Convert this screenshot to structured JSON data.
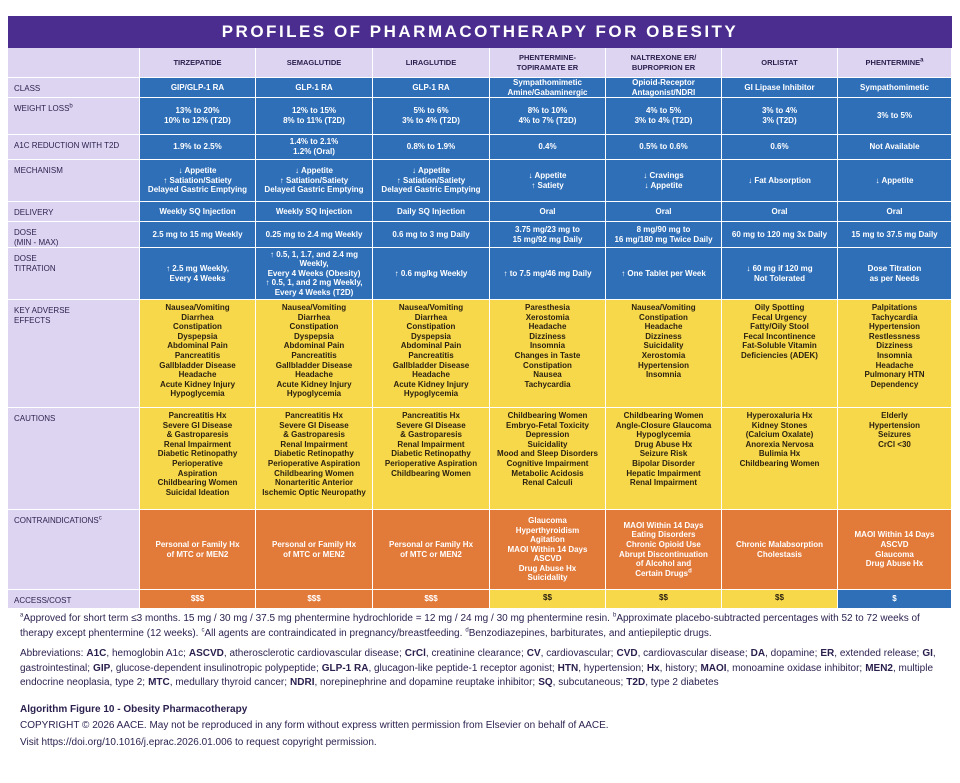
{
  "title": "PROFILES OF PHARMACOTHERAPY FOR OBESITY",
  "table": {
    "columns": [
      {
        "name": [
          "TIRZEPATIDE"
        ]
      },
      {
        "name": [
          "SEMAGLUTIDE"
        ]
      },
      {
        "name": [
          "LIRAGLUTIDE"
        ]
      },
      {
        "name": [
          "PHENTERMINE-",
          "TOPIRAMATE ER"
        ]
      },
      {
        "name": [
          "NALTREXONE ER/",
          "BUPROPRION ER"
        ]
      },
      {
        "name": [
          "ORLISTAT"
        ]
      },
      {
        "name": [
          "PHENTERMINE"
        ],
        "sup": "a"
      }
    ],
    "rows": [
      {
        "label": [
          "CLASS"
        ],
        "cells": [
          [
            "GIP/GLP-1 RA"
          ],
          [
            "GLP-1 RA"
          ],
          [
            "GLP-1 RA"
          ],
          [
            "Sympathomimetic",
            "Amine/Gabaminergic"
          ],
          [
            "Opioid-Receptor",
            "Antagonist/NDRI"
          ],
          [
            "GI Lipase Inhibitor"
          ],
          [
            "Sympathomimetic"
          ]
        ]
      },
      {
        "label": [
          "WEIGHT LOSS"
        ],
        "sup": "b",
        "cells": [
          [
            "13% to 20%",
            "10% to 12% (T2D)"
          ],
          [
            "12% to 15%",
            "8% to 11% (T2D)"
          ],
          [
            "5% to 6%",
            "3% to 4% (T2D)"
          ],
          [
            "8% to 10%",
            "4% to 7% (T2D)"
          ],
          [
            "4% to 5%",
            "3% to 4% (T2D)"
          ],
          [
            "3% to 4%",
            "3% (T2D)"
          ],
          [
            "3% to 5%"
          ]
        ]
      },
      {
        "label": [
          "A1C REDUCTION WITH T2D"
        ],
        "cells": [
          [
            "1.9% to 2.5%"
          ],
          [
            "1.4% to 2.1%",
            "1.2% (Oral)"
          ],
          [
            "0.8% to 1.9%"
          ],
          [
            "0.4%"
          ],
          [
            "0.5% to 0.6%"
          ],
          [
            "0.6%"
          ],
          [
            "Not Available"
          ]
        ]
      },
      {
        "label": [
          "MECHANISM"
        ],
        "cells": [
          [
            "↓ Appetite",
            "↑ Satiation/Satiety",
            "Delayed Gastric Emptying"
          ],
          [
            "↓ Appetite",
            "↑ Satiation/Satiety",
            "Delayed Gastric Emptying"
          ],
          [
            "↓ Appetite",
            "↑ Satiation/Satiety",
            "Delayed Gastric Emptying"
          ],
          [
            "↓ Appetite",
            "↑ Satiety"
          ],
          [
            "↓ Cravings",
            "↓ Appetite"
          ],
          [
            "↓ Fat Absorption"
          ],
          [
            "↓ Appetite"
          ]
        ]
      },
      {
        "label": [
          "DELIVERY"
        ],
        "cells": [
          [
            "Weekly SQ Injection"
          ],
          [
            "Weekly SQ Injection"
          ],
          [
            "Daily SQ Injection"
          ],
          [
            "Oral"
          ],
          [
            "Oral"
          ],
          [
            "Oral"
          ],
          [
            "Oral"
          ]
        ]
      },
      {
        "label": [
          "DOSE",
          "(MIN - MAX)"
        ],
        "cells": [
          [
            "2.5 mg to 15 mg Weekly"
          ],
          [
            "0.25 mg to 2.4 mg Weekly"
          ],
          [
            "0.6 mg to 3 mg Daily"
          ],
          [
            "3.75 mg/23 mg to",
            "15 mg/92 mg Daily"
          ],
          [
            "8 mg/90 mg to",
            "16 mg/180 mg Twice Daily"
          ],
          [
            "60 mg to 120 mg 3x Daily"
          ],
          [
            "15 mg to 37.5 mg Daily"
          ]
        ]
      },
      {
        "label": [
          "DOSE",
          "TITRATION"
        ],
        "cells": [
          [
            "↑ 2.5 mg Weekly,",
            "Every 4 Weeks"
          ],
          [
            "↑ 0.5, 1, 1.7, and 2.4 mg Weekly,",
            "Every 4 Weeks (Obesity)",
            "↑ 0.5, 1, and 2 mg Weekly,",
            "Every 4 Weeks (T2D)"
          ],
          [
            "↑ 0.6 mg/kg Weekly"
          ],
          [
            "↑ to 7.5 mg/46 mg Daily"
          ],
          [
            "↑ One Tablet per Week"
          ],
          [
            "↓ 60 mg if 120 mg",
            "Not Tolerated"
          ],
          [
            "Dose Titration",
            "as per Needs"
          ]
        ]
      },
      {
        "label": [
          "KEY ADVERSE",
          "EFFECTS"
        ],
        "cells": [
          [
            "Nausea/Vomiting",
            "Diarrhea",
            "Constipation",
            "Dyspepsia",
            "Abdominal Pain",
            "Pancreatitis",
            "Gallbladder Disease",
            "Headache",
            "Acute Kidney Injury",
            "Hypoglycemia"
          ],
          [
            "Nausea/Vomiting",
            "Diarrhea",
            "Constipation",
            "Dyspepsia",
            "Abdominal Pain",
            "Pancreatitis",
            "Gallbladder Disease",
            "Headache",
            "Acute Kidney Injury",
            "Hypoglycemia"
          ],
          [
            "Nausea/Vomiting",
            "Diarrhea",
            "Constipation",
            "Dyspepsia",
            "Abdominal Pain",
            "Pancreatitis",
            "Gallbladder Disease",
            "Headache",
            "Acute Kidney Injury",
            "Hypoglycemia"
          ],
          [
            "Paresthesia",
            "Xerostomia",
            "Headache",
            "Dizziness",
            "Insomnia",
            "Changes in Taste",
            "Constipation",
            "Nausea",
            "Tachycardia"
          ],
          [
            "Nausea/Vomiting",
            "Constipation",
            "Headache",
            "Dizziness",
            "Suicidality",
            "Xerostomia",
            "Hypertension",
            "Insomnia"
          ],
          [
            "Oily Spotting",
            "Fecal Urgency",
            "Fatty/Oily Stool",
            "Fecal Incontinence",
            "Fat-Soluble Vitamin",
            "Deficiencies (ADEK)"
          ],
          [
            "Palpitations",
            "Tachycardia",
            "Hypertension",
            "Restlessness",
            "Dizziness",
            "Insomnia",
            "Headache",
            "Pulmonary HTN",
            "Dependency"
          ]
        ]
      },
      {
        "label": [
          "CAUTIONS"
        ],
        "cells": [
          [
            "Pancreatitis Hx",
            "Severe GI Disease",
            "& Gastroparesis",
            "Renal Impairment",
            "Diabetic Retinopathy",
            "Perioperative",
            "Aspiration",
            "Childbearing Women",
            "Suicidal Ideation"
          ],
          [
            "Pancreatitis Hx",
            "Severe GI Disease",
            "& Gastroparesis",
            "Renal Impairment",
            "Diabetic Retinopathy",
            "Perioperative Aspiration",
            "Childbearing Women",
            "Nonarteritic Anterior",
            "Ischemic Optic Neuropathy"
          ],
          [
            "Pancreatitis Hx",
            "Severe GI Disease",
            "& Gastroparesis",
            "Renal Impairment",
            "Diabetic Retinopathy",
            "Perioperative Aspiration",
            "Childbearing Women"
          ],
          [
            "Childbearing Women",
            "Embryo-Fetal Toxicity",
            "Depression",
            "Suicidality",
            "Mood and Sleep Disorders",
            "Cognitive Impairment",
            "Metabolic Acidosis",
            "Renal Calculi"
          ],
          [
            "Childbearing Women",
            "Angle-Closure Glaucoma",
            "Hypoglycemia",
            "Drug Abuse Hx",
            "Seizure Risk",
            "Bipolar Disorder",
            "Hepatic Impairment",
            "Renal Impairment"
          ],
          [
            "Hyperoxaluria Hx",
            "Kidney Stones",
            "(Calcium Oxalate)",
            "Anorexia Nervosa",
            "Bulimia Hx",
            "Childbearing Women"
          ],
          [
            "Elderly",
            "Hypertension",
            "Seizures",
            "CrCl <30"
          ]
        ]
      },
      {
        "label": [
          "CONTRAINDICATIONS"
        ],
        "sup": "c",
        "cells": [
          [
            "Personal or Family Hx",
            "of MTC or MEN2"
          ],
          [
            "Personal or Family Hx",
            "of MTC or MEN2"
          ],
          [
            "Personal or Family Hx",
            "of MTC or MEN2"
          ],
          [
            "Glaucoma",
            "Hyperthyroidism",
            "Agitation",
            "MAOI Within 14 Days",
            "ASCVD",
            "Drug Abuse Hx",
            "Suicidality"
          ],
          [
            "MAOI Within 14 Days",
            "Eating Disorders",
            "Chronic Opioid Use",
            "Abrupt Discontinuation",
            "of Alcohol and",
            {
              "text": "Certain Drugs",
              "sup": "d"
            }
          ],
          [
            "Chronic Malabsorption",
            "Cholestasis"
          ],
          [
            "MAOI Within 14 Days",
            "ASCVD",
            "Glaucoma",
            "Drug Abuse Hx"
          ]
        ]
      },
      {
        "label": [
          "ACCESS/COST"
        ],
        "cells": [
          [
            "$$$"
          ],
          [
            "$$$"
          ],
          [
            "$$$"
          ],
          [
            "$$"
          ],
          [
            "$$"
          ],
          [
            "$$"
          ],
          [
            "$"
          ]
        ]
      }
    ]
  },
  "footnotes": [
    {
      "sup": "a",
      "text": "Approved for short term ≤3 months. 15 mg / 30 mg / 37.5 mg phentermine hydrochloride = 12 mg / 24 mg / 30 mg phentermine resin."
    },
    {
      "sup": "b",
      "text": "Approximate placebo-subtracted percentages with 52 to 72 weeks of therapy except phentermine (12 weeks)."
    },
    {
      "sup": "c",
      "text": "All agents are contraindicated in pregnancy/breastfeeding."
    },
    {
      "sup": "d",
      "text": "Benzodiazepines, barbiturates, and antiepileptic drugs."
    }
  ],
  "abbreviations": {
    "label": "Abbreviations:",
    "items": [
      {
        "term": "A1C",
        "text": ", hemoglobin A1c;"
      },
      {
        "term": "ASCVD",
        "text": ", atherosclerotic cardiovascular disease;"
      },
      {
        "term": "CrCl",
        "text": ", creatinine clearance;"
      },
      {
        "term": "CV",
        "text": ", cardiovascular;"
      },
      {
        "term": "CVD",
        "text": ", cardiovascular disease;"
      },
      {
        "term": "DA",
        "text": ", dopamine;"
      },
      {
        "term": "ER",
        "text": ", extended release;"
      },
      {
        "term": "GI",
        "text": ", gastrointestinal;"
      },
      {
        "term": "GIP",
        "text": ", glucose-dependent insulinotropic polypeptide;"
      },
      {
        "term": "GLP-1 RA",
        "text": ", glucagon-like peptide-1 receptor agonist;"
      },
      {
        "term": "HTN",
        "text": ", hypertension;"
      },
      {
        "term": "Hx",
        "text": ", history;"
      },
      {
        "term": "MAOI",
        "text": ", monoamine oxidase inhibitor;"
      },
      {
        "term": "MEN2",
        "text": ", multiple endocrine neoplasia, type 2;"
      },
      {
        "term": "MTC",
        "text": ", medullary thyroid cancer;"
      },
      {
        "term": "NDRI",
        "text": ", norepinephrine and dopamine reuptake inhibitor;"
      },
      {
        "term": "SQ",
        "text": ", subcutaneous;"
      },
      {
        "term": "T2D",
        "text": ", type 2 diabetes"
      }
    ]
  },
  "figure_title": "Algorithm Figure 10 - Obesity Pharmacotherapy",
  "copyright": "COPYRIGHT © 2026 AACE. May not be reproduced in any form without express written permission from Elsevier on behalf of AACE.",
  "visit": "Visit https://doi.org/10.1016/j.eprac.2026.01.006 to request copyright permission."
}
